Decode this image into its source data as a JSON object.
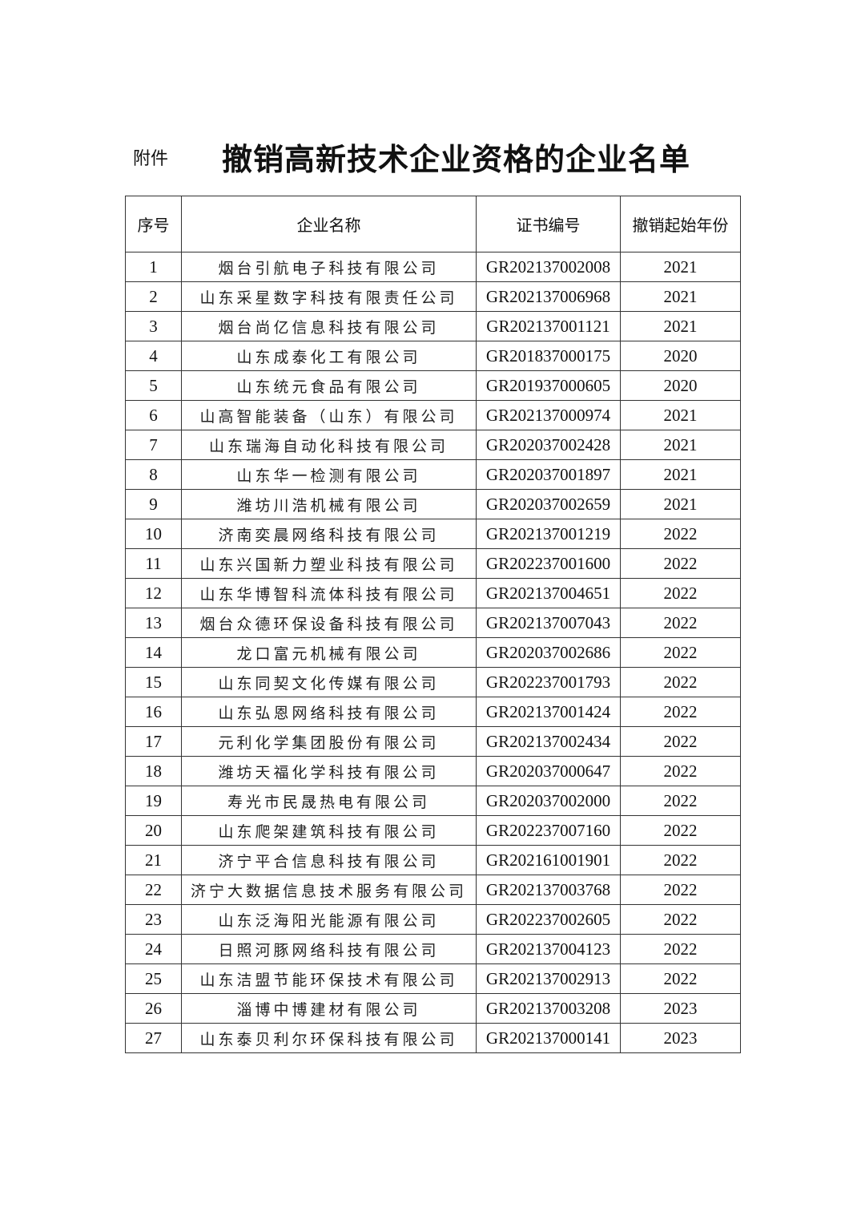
{
  "attachment_label": "附件",
  "title": "撤销高新技术企业资格的企业名单",
  "table": {
    "headers": [
      "序号",
      "企业名称",
      "证书编号",
      "撤销起始年份"
    ],
    "rows": [
      [
        "1",
        "烟台引航电子科技有限公司",
        "GR202137002008",
        "2021"
      ],
      [
        "2",
        "山东采星数字科技有限责任公司",
        "GR202137006968",
        "2021"
      ],
      [
        "3",
        "烟台尚亿信息科技有限公司",
        "GR202137001121",
        "2021"
      ],
      [
        "4",
        "山东成泰化工有限公司",
        "GR201837000175",
        "2020"
      ],
      [
        "5",
        "山东统元食品有限公司",
        "GR201937000605",
        "2020"
      ],
      [
        "6",
        "山高智能装备（山东）有限公司",
        "GR202137000974",
        "2021"
      ],
      [
        "7",
        "山东瑞海自动化科技有限公司",
        "GR202037002428",
        "2021"
      ],
      [
        "8",
        "山东华一检测有限公司",
        "GR202037001897",
        "2021"
      ],
      [
        "9",
        "潍坊川浩机械有限公司",
        "GR202037002659",
        "2021"
      ],
      [
        "10",
        "济南奕晨网络科技有限公司",
        "GR202137001219",
        "2022"
      ],
      [
        "11",
        "山东兴国新力塑业科技有限公司",
        "GR202237001600",
        "2022"
      ],
      [
        "12",
        "山东华博智科流体科技有限公司",
        "GR202137004651",
        "2022"
      ],
      [
        "13",
        "烟台众德环保设备科技有限公司",
        "GR202137007043",
        "2022"
      ],
      [
        "14",
        "龙口富元机械有限公司",
        "GR202037002686",
        "2022"
      ],
      [
        "15",
        "山东同契文化传媒有限公司",
        "GR202237001793",
        "2022"
      ],
      [
        "16",
        "山东弘恩网络科技有限公司",
        "GR202137001424",
        "2022"
      ],
      [
        "17",
        "元利化学集团股份有限公司",
        "GR202137002434",
        "2022"
      ],
      [
        "18",
        "潍坊天福化学科技有限公司",
        "GR202037000647",
        "2022"
      ],
      [
        "19",
        "寿光市民晟热电有限公司",
        "GR202037002000",
        "2022"
      ],
      [
        "20",
        "山东爬架建筑科技有限公司",
        "GR202237007160",
        "2022"
      ],
      [
        "21",
        "济宁平合信息科技有限公司",
        "GR202161001901",
        "2022"
      ],
      [
        "22",
        "济宁大数据信息技术服务有限公司",
        "GR202137003768",
        "2022"
      ],
      [
        "23",
        "山东泛海阳光能源有限公司",
        "GR202237002605",
        "2022"
      ],
      [
        "24",
        "日照河豚网络科技有限公司",
        "GR202137004123",
        "2022"
      ],
      [
        "25",
        "山东洁盟节能环保技术有限公司",
        "GR202137002913",
        "2022"
      ],
      [
        "26",
        "淄博中博建材有限公司",
        "GR202137003208",
        "2023"
      ],
      [
        "27",
        "山东泰贝利尔环保科技有限公司",
        "GR202137000141",
        "2023"
      ]
    ]
  }
}
